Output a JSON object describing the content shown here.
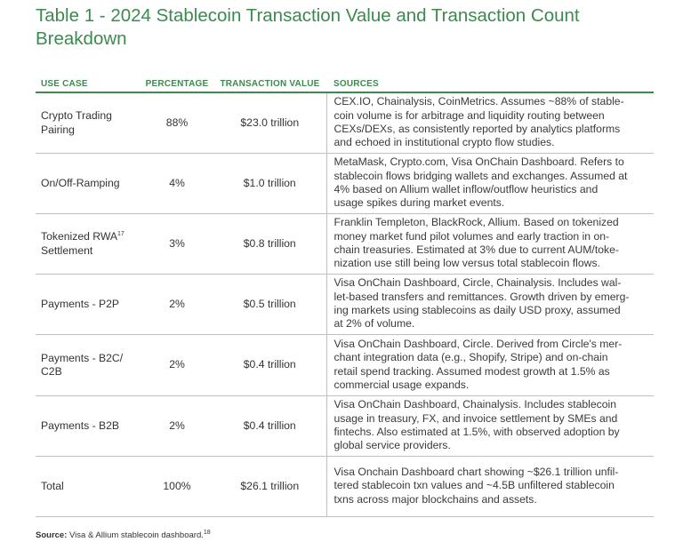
{
  "title": "Table 1 - 2024 Stablecoin Transaction Value and Transaction Count Breakdown",
  "headers": {
    "use_case": "USE CASE",
    "percentage": "PERCENTAGE",
    "value": "TRANSACTION VALUE",
    "sources": "SOURCES"
  },
  "rows": [
    {
      "use_case": "Crypto Trading Pairing",
      "footnote": "",
      "percentage": "88%",
      "value": "$23.0 trillion",
      "sources": [
        "CEX.IO, Chainalysis, CoinMetrics. Assumes ~88% of stable-",
        "coin volume is for arbitrage and liquidity routing between",
        "CEXs/DEXs, as consistently reported by analytics platforms",
        "and echoed in institutional crypto flow studies."
      ]
    },
    {
      "use_case": "On/Off-Ramping",
      "footnote": "",
      "percentage": "4%",
      "value": "$1.0 trillion",
      "sources": [
        "MetaMask, Crypto.com, Visa OnChain Dashboard. Refers to",
        "stablecoin flows bridging wallets and exchanges. Assumed at",
        "4% based on Allium wallet inflow/outflow heuristics and",
        "usage spikes during market events."
      ]
    },
    {
      "use_case": "Tokenized RWA",
      "footnote": "17",
      "use_case_2": "Settlement",
      "percentage": "3%",
      "value": "$0.8 trillion",
      "sources": [
        "Franklin Templeton, BlackRock, Allium. Based on tokenized",
        "money market fund pilot volumes and early traction in on-",
        "chain treasuries. Estimated at 3% due to current AUM/toke-",
        "nization use still being low versus total stablecoin flows."
      ]
    },
    {
      "use_case": "Payments - P2P",
      "footnote": "",
      "percentage": "2%",
      "value": "$0.5 trillion",
      "sources": [
        "Visa OnChain Dashboard, Circle, Chainalysis. Includes wal-",
        "let-based transfers and remittances. Growth driven by emerg-",
        "ing markets using stablecoins as daily USD proxy, assumed",
        "at 2% of volume."
      ]
    },
    {
      "use_case": "Payments - B2C/",
      "footnote": "",
      "use_case_2": "C2B",
      "percentage": "2%",
      "value": "$0.4 trillion",
      "sources": [
        "Visa OnChain Dashboard, Circle. Derived from Circle's mer-",
        "chant integration data (e.g., Shopify, Stripe) and on-chain",
        "retail spend tracking. Assumed modest growth at 1.5% as",
        "commercial usage expands."
      ]
    },
    {
      "use_case": "Payments - B2B",
      "footnote": "",
      "percentage": "2%",
      "value": "$0.4 trillion",
      "sources": [
        "Visa OnChain Dashboard, Chainalysis. Includes stablecoin",
        "usage in treasury, FX, and invoice settlement by SMEs and",
        "fintechs. Also estimated at 1.5%, with observed adoption by",
        "global service providers."
      ]
    },
    {
      "use_case": "Total",
      "footnote": "",
      "percentage": "100%",
      "value": "$26.1 trillion",
      "sources": [
        "Visa Onchain Dashboard chart showing ~$26.1 trillion unfil-",
        "tered stablecoin txn values and ~4.5B unfiltered stablecoin",
        "txns across major blockchains and assets."
      ]
    }
  ],
  "source_note": {
    "label": "Source:",
    "text": " Visa & Allium stablecoin dashboard.",
    "footnote": "18"
  },
  "colors": {
    "accent": "#3c8a4e",
    "rule": "#bfbfbf",
    "text": "#333333"
  }
}
